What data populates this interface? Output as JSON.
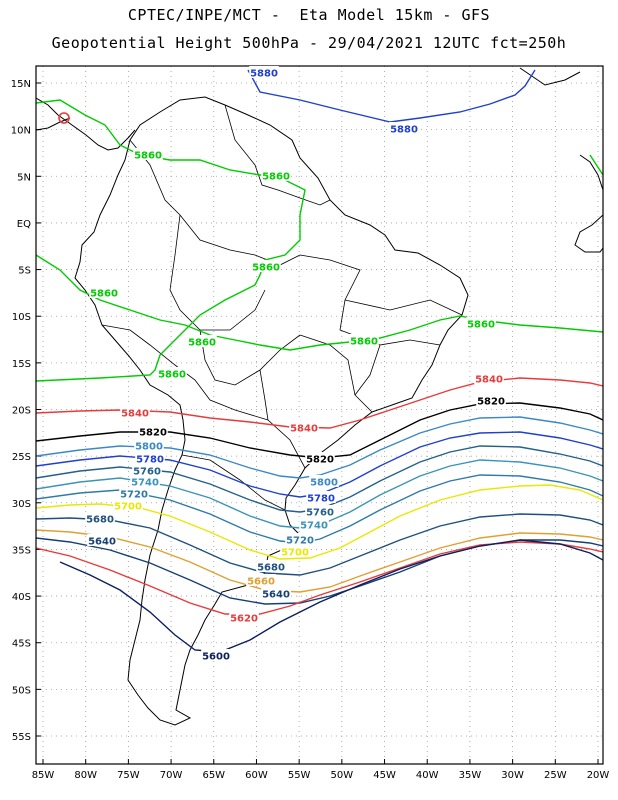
{
  "title": {
    "line1": "CPTEC/INPE/MCT -  Eta Model 15km - GFS",
    "line2": "Geopotential Height 500hPa - 29/04/2021 12UTC fct=250h"
  },
  "axes": {
    "lat_labels": [
      "15N",
      "10N",
      "5N",
      "EQ",
      "5S",
      "10S",
      "15S",
      "20S",
      "25S",
      "30S",
      "35S",
      "40S",
      "45S",
      "50S",
      "55S"
    ],
    "lon_labels": [
      "85W",
      "80W",
      "75W",
      "70W",
      "65W",
      "60W",
      "55W",
      "50W",
      "45W",
      "40W",
      "35W",
      "30W",
      "25W",
      "20W"
    ]
  },
  "colors": {
    "5600": "#0b1f5e",
    "5620": "#e83a3a",
    "5640": "#163e78",
    "5660": "#e0a030",
    "5680": "#1f4f80",
    "5700": "#e8e800",
    "5720": "#2e7aa8",
    "5740": "#3a94b8",
    "5760": "#23608a",
    "5780": "#1f3fd0",
    "5800": "#3a88c8",
    "5820": "#000000",
    "5840": "#e83a3a",
    "5860": "#00cc00",
    "5880": "#1f3fd0",
    "coast": "#000000",
    "grid": "#9a9a9a"
  },
  "contour_labels": [
    {
      "text": "5880",
      "key": "5880"
    },
    {
      "text": "5880",
      "key": "5880"
    },
    {
      "text": "5860",
      "key": "5860"
    },
    {
      "text": "5860",
      "key": "5860"
    },
    {
      "text": "5860",
      "key": "5860"
    },
    {
      "text": "5860",
      "key": "5860"
    },
    {
      "text": "5860",
      "key": "5860"
    },
    {
      "text": "5860",
      "key": "5860"
    },
    {
      "text": "5860",
      "key": "5860"
    },
    {
      "text": "5860",
      "key": "5860"
    },
    {
      "text": "5840",
      "key": "5840"
    },
    {
      "text": "5840",
      "key": "5840"
    },
    {
      "text": "5840",
      "key": "5840"
    },
    {
      "text": "5820",
      "key": "5820"
    },
    {
      "text": "5820",
      "key": "5820"
    },
    {
      "text": "5820",
      "key": "5820"
    },
    {
      "text": "5800",
      "key": "5800"
    },
    {
      "text": "5800",
      "key": "5800"
    },
    {
      "text": "5780",
      "key": "5780"
    },
    {
      "text": "5780",
      "key": "5780"
    },
    {
      "text": "5760",
      "key": "5760"
    },
    {
      "text": "5760",
      "key": "5760"
    },
    {
      "text": "5740",
      "key": "5740"
    },
    {
      "text": "5740",
      "key": "5740"
    },
    {
      "text": "5720",
      "key": "5720"
    },
    {
      "text": "5720",
      "key": "5720"
    },
    {
      "text": "5700",
      "key": "5700"
    },
    {
      "text": "5700",
      "key": "5700"
    },
    {
      "text": "5680",
      "key": "5680"
    },
    {
      "text": "5680",
      "key": "5680"
    },
    {
      "text": "5660",
      "key": "5660"
    },
    {
      "text": "5640",
      "key": "5640"
    },
    {
      "text": "5640",
      "key": "5640"
    },
    {
      "text": "5620",
      "key": "5620"
    },
    {
      "text": "5600",
      "key": "5600"
    }
  ]
}
